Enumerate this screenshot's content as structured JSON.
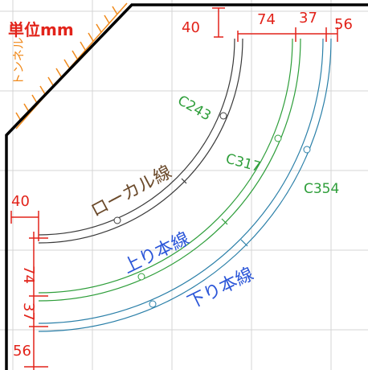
{
  "sheet": {
    "unit_note": "単位mm",
    "wall_label": "トンネル"
  },
  "dimensions": {
    "top_offset": "40",
    "top_spacing_1": "74",
    "top_spacing_2": "37",
    "top_spacing_3": "56",
    "left_offset": "40",
    "left_spacing_1": "74",
    "left_spacing_2": "37",
    "left_spacing_3": "56"
  },
  "tracks": [
    {
      "radius_label": "C243",
      "line_label": "ローカル線"
    },
    {
      "radius_label": "C317",
      "line_label": "上り本線"
    },
    {
      "radius_label": "C354",
      "line_label": "下り本線"
    }
  ],
  "colors": {
    "grid": "#d4d4d4",
    "dimension": "#e2231a",
    "wall": "#000000",
    "local_track": "#3a3a3a",
    "up_track": "#2e9e3a",
    "down_track": "#2a7fa8",
    "local_text": "#6b4a2b",
    "up_text": "#2a55d8",
    "down_text": "#2a55d8",
    "radius_text": "#2e9e3a",
    "tunnel_hatch": "#f08a1c"
  }
}
